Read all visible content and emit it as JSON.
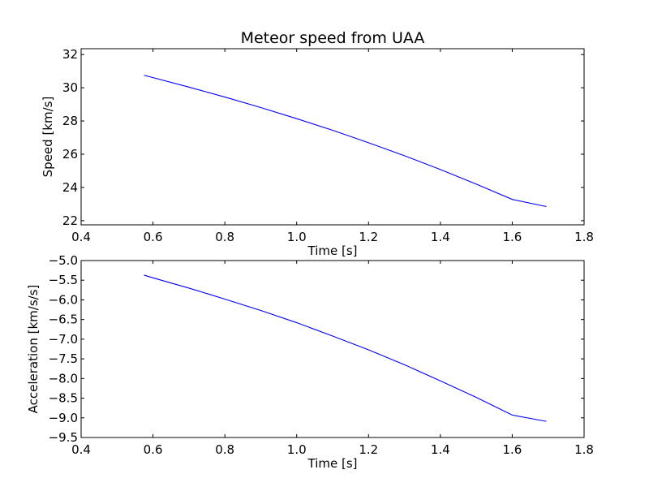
{
  "title": "Meteor speed from  UAA",
  "line_color": "#0000ff",
  "chart_data": [
    {
      "type": "line",
      "title": "Meteor speed from  UAA",
      "xlabel": "Time [s]",
      "ylabel": "Speed [km/s]",
      "xlim": [
        0.4,
        1.8
      ],
      "ylim": [
        21.75,
        32.35
      ],
      "xticks": [
        0.4,
        0.6,
        0.8,
        1.0,
        1.2,
        1.4,
        1.6,
        1.8
      ],
      "xtick_labels": [
        "0.4",
        "0.6",
        "0.8",
        "1.0",
        "1.2",
        "1.4",
        "1.6",
        "1.8"
      ],
      "yticks": [
        22,
        24,
        26,
        28,
        30,
        32
      ],
      "ytick_labels": [
        "22",
        "24",
        "26",
        "28",
        "30",
        "32"
      ],
      "grid": false,
      "series": [
        {
          "x": [
            0.575,
            0.6,
            0.7,
            0.8,
            0.9,
            1.0,
            1.1,
            1.2,
            1.3,
            1.4,
            1.5,
            1.6,
            1.695
          ],
          "y": [
            30.75,
            30.61,
            30.04,
            29.44,
            28.81,
            28.14,
            27.44,
            26.69,
            25.91,
            25.08,
            24.2,
            23.28,
            22.85
          ]
        }
      ]
    },
    {
      "type": "line",
      "title": "",
      "xlabel": "Time [s]",
      "ylabel": "Acceleration [km/s/s]",
      "xlim": [
        0.4,
        1.8
      ],
      "ylim": [
        -9.5,
        -5.0
      ],
      "xticks": [
        0.4,
        0.6,
        0.8,
        1.0,
        1.2,
        1.4,
        1.6,
        1.8
      ],
      "xtick_labels": [
        "0.4",
        "0.6",
        "0.8",
        "1.0",
        "1.2",
        "1.4",
        "1.6",
        "1.8"
      ],
      "yticks": [
        -5.0,
        -5.5,
        -6.0,
        -6.5,
        -7.0,
        -7.5,
        -8.0,
        -8.5,
        -9.0,
        -9.5
      ],
      "ytick_labels": [
        "−5.0",
        "−5.5",
        "−6.0",
        "−6.5",
        "−7.0",
        "−7.5",
        "−8.0",
        "−8.5",
        "−9.0",
        "−9.5"
      ],
      "grid": false,
      "series": [
        {
          "x": [
            0.575,
            0.6,
            0.7,
            0.8,
            0.9,
            1.0,
            1.1,
            1.2,
            1.3,
            1.4,
            1.5,
            1.6,
            1.695
          ],
          "y": [
            -5.37,
            -5.44,
            -5.7,
            -5.98,
            -6.27,
            -6.58,
            -6.92,
            -7.27,
            -7.65,
            -8.06,
            -8.48,
            -8.93,
            -9.09
          ]
        }
      ]
    }
  ]
}
